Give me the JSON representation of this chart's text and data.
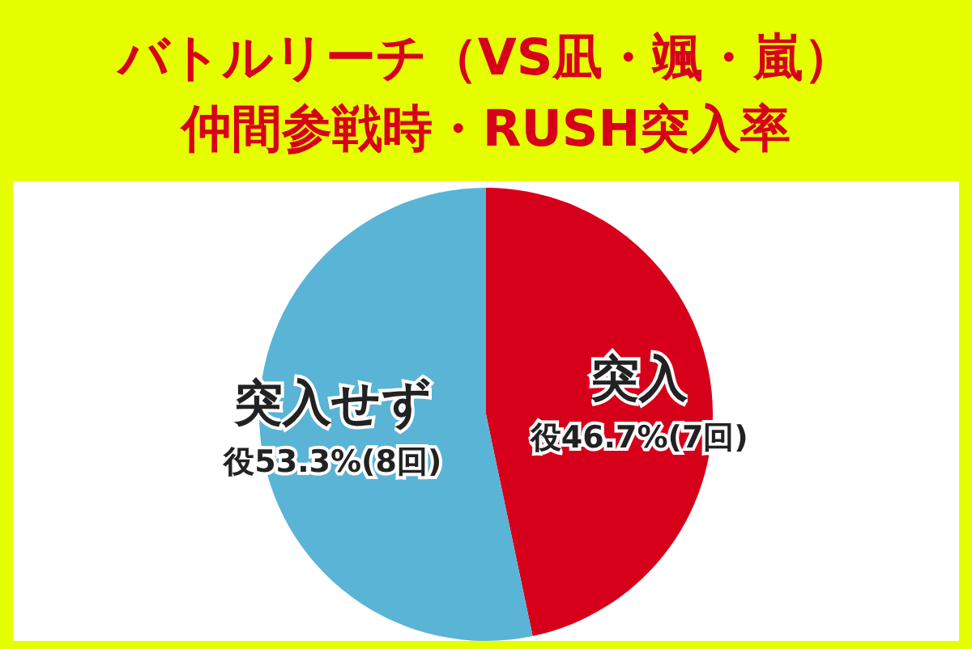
{
  "chart_data": {
    "type": "pie",
    "title": "バトルリーチ（VS凪・颯・嵐）",
    "subtitle": "仲間参戦時・RUSH突入率",
    "categories": [
      "突入",
      "突入せず"
    ],
    "values": [
      46.7,
      53.3
    ],
    "colors": [
      "#d7001a",
      "#5ab4d6"
    ],
    "value_labels": [
      "役46.7%(7回)",
      "役53.3%(8回)"
    ],
    "legend": false
  }
}
